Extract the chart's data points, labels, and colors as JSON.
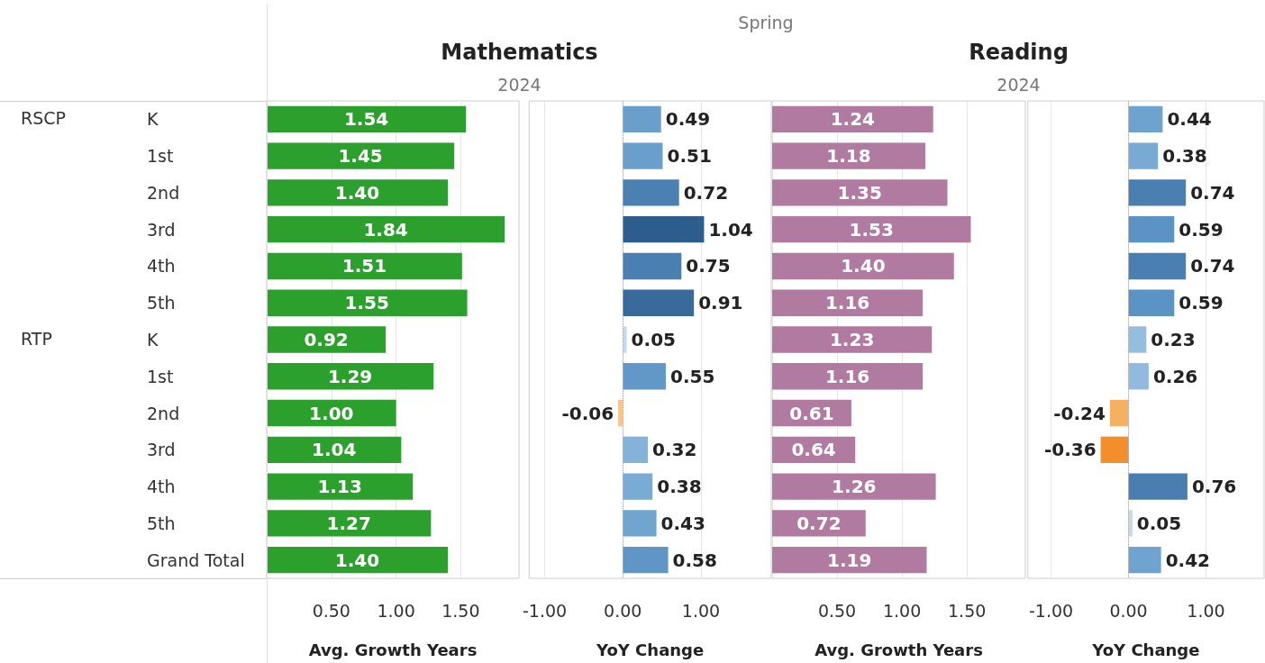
{
  "chart_data": [
    {
      "type": "bar",
      "orientation": "horizontal",
      "title": "Mathematics",
      "subtitle": "2024",
      "xlabel": "Avg. Growth Years",
      "annotations": [
        "Spring",
        "RSCP",
        "RTP"
      ],
      "categories": [
        "K",
        "1st",
        "2nd",
        "3rd",
        "4th",
        "5th",
        "K",
        "1st",
        "2nd",
        "3rd",
        "4th",
        "5th",
        "Grand Total"
      ],
      "values": [
        1.54,
        1.45,
        1.4,
        1.84,
        1.51,
        1.55,
        0.92,
        1.29,
        1.0,
        1.04,
        1.13,
        1.27,
        1.4
      ],
      "color": "#2ca02c",
      "value_labels": [
        "1.54",
        "1.45",
        "1.40",
        "1.84",
        "1.51",
        "1.55",
        "0.92",
        "1.29",
        "1.00",
        "1.04",
        "1.13",
        "1.27",
        "1.40"
      ],
      "xlim": [
        0,
        1.95
      ],
      "xticks": [
        {
          "value": 0.5,
          "label": "0.50"
        },
        {
          "value": 1,
          "label": "1.00"
        },
        {
          "value": 1.5,
          "label": "1.50"
        }
      ],
      "grid": "x"
    },
    {
      "type": "bar",
      "orientation": "horizontal",
      "xlabel": "YoY Change",
      "tick_labels": "x",
      "categories": [
        "K",
        "1st",
        "2nd",
        "3rd",
        "4th",
        "5th",
        "K",
        "1st",
        "2nd",
        "3rd",
        "4th",
        "5th",
        "Grand Total"
      ],
      "values": [
        0.49,
        0.51,
        0.72,
        1.04,
        0.75,
        0.91,
        0.05,
        0.55,
        -0.06,
        0.32,
        0.38,
        0.43,
        0.58
      ],
      "value_labels": [
        "0.49",
        "0.51",
        "0.72",
        "1.04",
        "0.75",
        "0.91",
        "0.05",
        "0.55",
        "-0.06",
        "0.32",
        "0.38",
        "0.43",
        "0.58"
      ],
      "colors": [
        "#6a9fcc",
        "#6a9fcc",
        "#4b80b3",
        "#2c5d8c",
        "#4a7fb2",
        "#386b9c",
        "#c5d9ea",
        "#6198c8",
        "#f9c58b",
        "#85b2d8",
        "#7aabd4",
        "#71a5d0",
        "#5f96c6"
      ],
      "ref_lines": [
        {
          "axis": "x",
          "value": 0,
          "color": "#aaaaaa",
          "line_style": "dotted"
        }
      ],
      "xlim": [
        -1.2,
        1.9
      ],
      "xticks": [
        {
          "value": -1,
          "label": "-1.00"
        },
        {
          "value": 0,
          "label": "0.00"
        },
        {
          "value": 1,
          "label": "1.00"
        }
      ],
      "grid": "x"
    },
    {
      "type": "bar",
      "orientation": "horizontal",
      "title": "Reading",
      "subtitle": "2024",
      "xlabel": "Avg. Growth Years",
      "tick_labels": "x",
      "categories": [
        "K",
        "1st",
        "2nd",
        "3rd",
        "4th",
        "5th",
        "K",
        "1st",
        "2nd",
        "3rd",
        "4th",
        "5th",
        "Grand Total"
      ],
      "values": [
        1.24,
        1.18,
        1.35,
        1.53,
        1.4,
        1.16,
        1.23,
        1.16,
        0.61,
        0.64,
        1.26,
        0.72,
        1.19
      ],
      "color": "#b07aa1",
      "value_labels": [
        "1.24",
        "1.18",
        "1.35",
        "1.53",
        "1.40",
        "1.16",
        "1.23",
        "1.16",
        "0.61",
        "0.64",
        "1.26",
        "0.72",
        "1.19"
      ],
      "xlim": [
        0,
        1.95
      ],
      "xticks": [
        {
          "value": 0.5,
          "label": "0.50"
        },
        {
          "value": 1,
          "label": "1.00"
        },
        {
          "value": 1.5,
          "label": "1.50"
        }
      ],
      "grid": "x"
    },
    {
      "type": "bar",
      "orientation": "horizontal",
      "xlabel": "YoY Change",
      "tick_labels": "x",
      "categories": [
        "K",
        "1st",
        "2nd",
        "3rd",
        "4th",
        "5th",
        "K",
        "1st",
        "2nd",
        "3rd",
        "4th",
        "5th",
        "Grand Total"
      ],
      "values": [
        0.44,
        0.38,
        0.74,
        0.59,
        0.74,
        0.59,
        0.23,
        0.26,
        -0.24,
        -0.36,
        0.76,
        0.05,
        0.42
      ],
      "value_labels": [
        "0.44",
        "0.38",
        "0.74",
        "0.59",
        "0.74",
        "0.59",
        "0.23",
        "0.26",
        "-0.24",
        "-0.36",
        "0.76",
        "0.05",
        "0.42"
      ],
      "colors": [
        "#6ea2cf",
        "#79aad3",
        "#4a7fb2",
        "#5b93c4",
        "#4a7fb2",
        "#5b93c4",
        "#95bde0",
        "#91bade",
        "#f7b060",
        "#f28e2b",
        "#4a7eb1",
        "#c5d9ea",
        "#70a4d0"
      ],
      "ref_lines": [
        {
          "axis": "x",
          "value": 0,
          "color": "#aaaaaa",
          "line_style": "dotted"
        }
      ],
      "xlim": [
        -1.3,
        1.75
      ],
      "xticks": [
        {
          "value": -1,
          "label": "-1.00"
        },
        {
          "value": 0,
          "label": "0.00"
        },
        {
          "value": 1,
          "label": "1.00"
        }
      ],
      "grid": "x"
    }
  ]
}
